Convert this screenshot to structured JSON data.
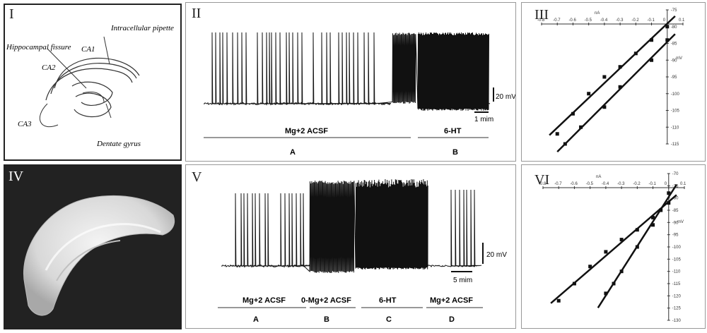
{
  "panels": {
    "p1": {
      "roman": "I",
      "labels": {
        "intracellular": "Intracellular pipette",
        "fissure": "Hippocampal fissure",
        "ca1": "CA1",
        "ca2": "CA2",
        "ca3": "CA3",
        "dentate": "Dentate gyrus"
      }
    },
    "p2": {
      "roman": "II",
      "scale_v": "20 mV",
      "scale_t": "1 mim",
      "cond_a": "Mg+2 ACSF",
      "cond_b": "6-HT",
      "letter_a": "A",
      "letter_b": "B"
    },
    "p3": {
      "roman": "III"
    },
    "p4": {
      "roman": "IV"
    },
    "p5": {
      "roman": "V",
      "scale_v": "20 mV",
      "scale_t": "5 mim",
      "cond_a": "Mg+2 ACSF",
      "cond_b": "0-Mg+2 ACSF",
      "cond_c": "6-HT",
      "cond_d": "Mg+2 ACSF",
      "letter_a": "A",
      "letter_b": "B",
      "letter_c": "C",
      "letter_d": "D"
    },
    "p6": {
      "roman": "VI"
    }
  },
  "chart_data": [
    {
      "type": "scatter",
      "panel": "III",
      "title": "",
      "xlabel": "nA",
      "ylabel": "mV",
      "xlim": [
        -0.8,
        0.1
      ],
      "ylim": [
        -115,
        -75
      ],
      "x_ticks": [
        -0.8,
        -0.7,
        -0.6,
        -0.5,
        -0.4,
        -0.3,
        -0.2,
        -0.1,
        0,
        0.1
      ],
      "x_tick_labels": [
        "-0.8",
        "-0.7",
        "-0.6",
        "-0.5",
        "-0.4",
        "-0.3",
        "-0.2",
        "-0.1",
        "0",
        "0.1"
      ],
      "y_ticks": [
        -75,
        -80,
        -85,
        -90,
        -95,
        -100,
        -105,
        -110,
        -115
      ],
      "y_tick_labels": [
        "-75",
        "-80",
        "-85",
        "-90",
        "-95",
        "-100",
        "-105",
        "-110",
        "-115"
      ],
      "grid": false,
      "series": [
        {
          "x": [
            -0.7,
            -0.6,
            -0.5,
            -0.4,
            -0.3,
            -0.2,
            -0.1,
            0
          ],
          "y": [
            -112,
            -106,
            -100,
            -95,
            -92,
            -88,
            -84,
            -80
          ]
        },
        {
          "x": [
            -0.65,
            -0.55,
            -0.4,
            -0.3,
            -0.1,
            0
          ],
          "y": [
            -115,
            -110,
            -104,
            -98,
            -90,
            -84
          ]
        }
      ]
    },
    {
      "type": "scatter",
      "panel": "VI",
      "title": "",
      "xlabel": "nA",
      "ylabel": "mV",
      "xlim": [
        -0.8,
        0.1
      ],
      "ylim": [
        -130,
        -70
      ],
      "x_ticks": [
        -0.8,
        -0.7,
        -0.6,
        -0.5,
        -0.4,
        -0.3,
        -0.2,
        -0.1,
        0,
        0.1
      ],
      "x_tick_labels": [
        "-0.8",
        "-0.7",
        "-0.6",
        "-0.5",
        "-0.4",
        "-0.3",
        "-0.2",
        "-0.1",
        "0",
        "0.1"
      ],
      "y_ticks": [
        -70,
        -75,
        -80,
        -85,
        -90,
        -95,
        -100,
        -105,
        -110,
        -115,
        -120,
        -125,
        -130
      ],
      "y_tick_labels": [
        "-70",
        "-75",
        "-80",
        "-85",
        "-90",
        "-95",
        "-100",
        "-105",
        "-110",
        "-115",
        "-120",
        "-125",
        "-130"
      ],
      "grid": false,
      "series": [
        {
          "x": [
            -0.7,
            -0.6,
            -0.5,
            -0.4,
            -0.3,
            -0.2,
            -0.1,
            0
          ],
          "y": [
            -122,
            -115,
            -108,
            -102,
            -97,
            -93,
            -88,
            -82
          ]
        },
        {
          "x": [
            -0.4,
            -0.35,
            -0.3,
            -0.2,
            -0.1,
            -0.05,
            0
          ],
          "y": [
            -119,
            -115,
            -110,
            -100,
            -91,
            -85,
            -78
          ]
        }
      ]
    }
  ]
}
